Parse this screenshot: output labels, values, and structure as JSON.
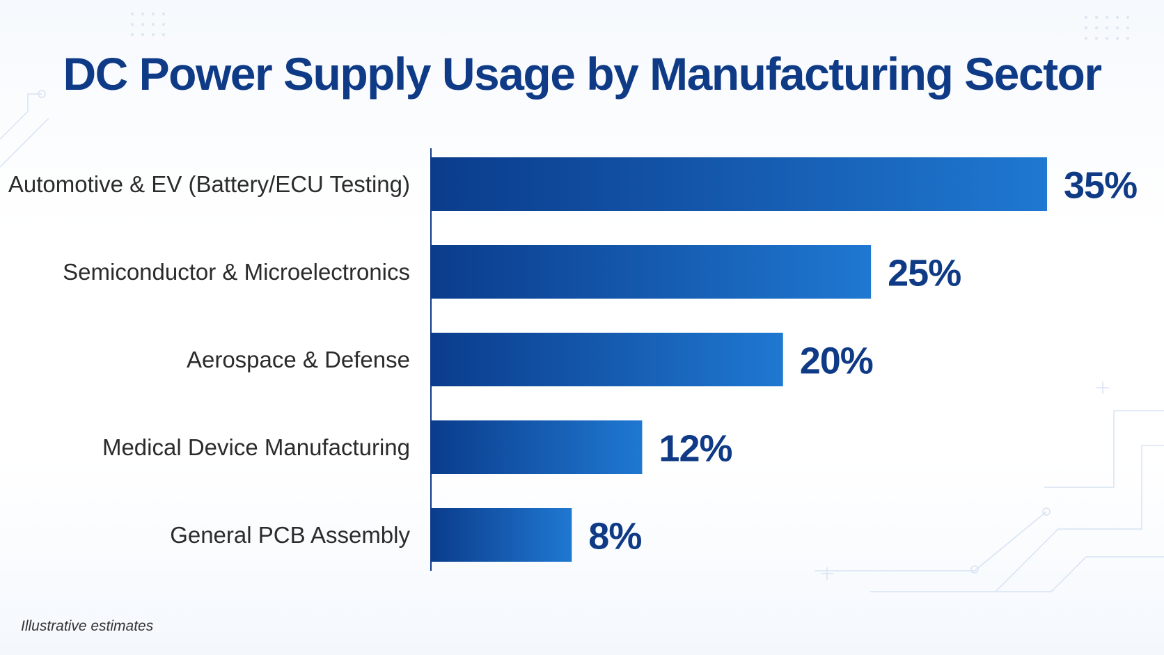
{
  "chart_data": {
    "type": "bar",
    "orientation": "horizontal",
    "title": "DC Power Supply Usage by Manufacturing Sector",
    "categories": [
      "Automotive & EV (Battery/ECU Testing)",
      "Semiconductor & Microelectronics",
      "Aerospace & Defense",
      "Medical Device Manufacturing",
      "General PCB Assembly"
    ],
    "values": [
      35,
      25,
      20,
      12,
      8
    ],
    "value_labels": [
      "35%",
      "25%",
      "20%",
      "12%",
      "8%"
    ],
    "unit": "%",
    "xlim": [
      0,
      35
    ],
    "grid": false,
    "legend": "none",
    "bar_color_start": "#0b3c8c",
    "bar_color_end": "#1f78d1"
  },
  "colors": {
    "title": "#0f3a86",
    "value_label": "#0f3a86",
    "category_label": "#2b2b2b",
    "axis": "#0f3a86"
  },
  "footnote": "Illustrative estimates"
}
